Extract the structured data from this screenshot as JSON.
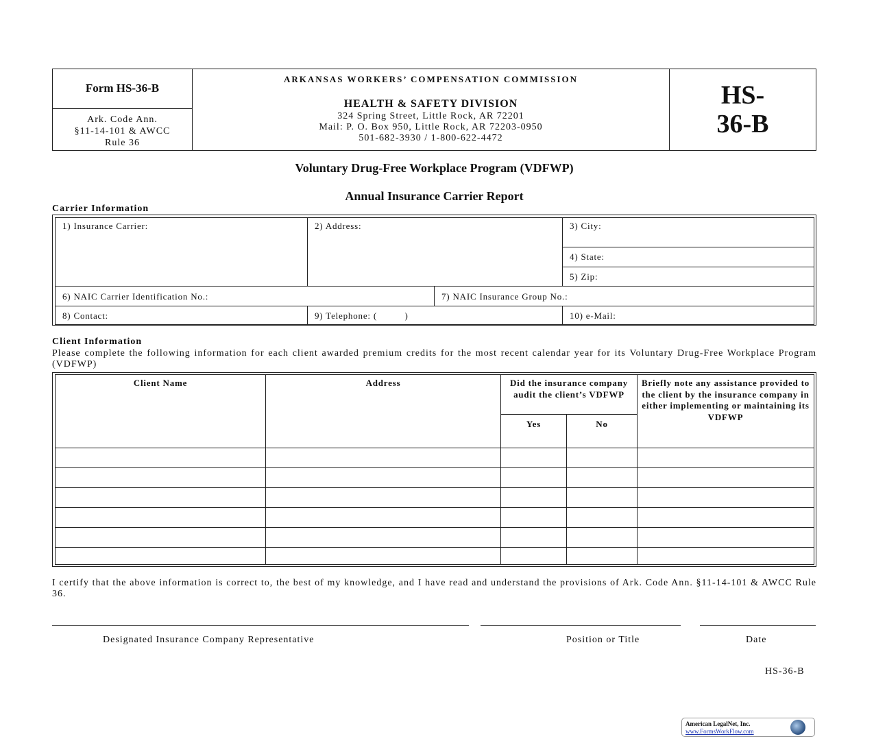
{
  "header": {
    "form_label": "Form HS-36-B",
    "code_ref": [
      "Ark. Code Ann.",
      "§11-14-101 & AWCC",
      "Rule 36"
    ],
    "agency": "ARKANSAS WORKERS’ COMPENSATION COMMISSION",
    "division": "HEALTH & SAFETY DIVISION",
    "address": "324 Spring Street, Little Rock, AR 72201",
    "mail": "Mail:  P. O. Box 950, Little Rock, AR 72203-0950",
    "phone": "501-682-3930 / 1-800-622-4472",
    "form_big": [
      "HS-",
      "36-B"
    ]
  },
  "title": "Voluntary Drug-Free Workplace Program (VDFWP)",
  "subtitle": "Annual Insurance Carrier Report",
  "carrier": {
    "heading": "Carrier Information",
    "fields": {
      "carrier": "1) Insurance Carrier:",
      "address": "2) Address:",
      "city": "3) City:",
      "state": "4) State:",
      "zip": "5) Zip:",
      "naic_id": "6) NAIC Carrier Identification No.:",
      "naic_group": "7) NAIC Insurance Group No.:",
      "contact": "8) Contact:",
      "telephone": "9) Telephone: (          )",
      "email": "10) e-Mail:"
    }
  },
  "client": {
    "heading": "Client Information",
    "instructions": "Please complete the following information for each client awarded premium credits for the most recent calendar year for its Voluntary Drug-Free Workplace Program (VDFWP)",
    "columns": {
      "name": "Client Name",
      "address": "Address",
      "audit": "Did the insurance company audit the client’s VDFWP",
      "yes": "Yes",
      "no": "No",
      "assistance": "Briefly note any assistance provided to the client by the insurance company in either implementing or maintaining its VDFWP"
    },
    "rows": 6
  },
  "certification": "I certify that the above information is correct to, the best of my knowledge, and I have read and understand the provisions of Ark. Code Ann. §11-14-101 & AWCC Rule 36.",
  "signature": {
    "rep": "Designated Insurance Company Representative",
    "position": "Position or Title",
    "date": "Date"
  },
  "footer_code": "HS-36-B",
  "logo": {
    "company": "American LegalNet, Inc.",
    "url": "www.FormsWorkFlow.com"
  }
}
